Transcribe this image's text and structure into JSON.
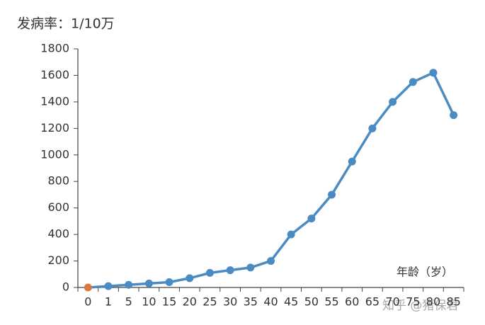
{
  "chart_data": {
    "type": "line",
    "y_label": "发病率：1/10万",
    "x_label": "年龄（岁）",
    "watermark": "知乎 @猪保君",
    "categories": [
      "0",
      "1",
      "5",
      "10",
      "15",
      "20",
      "25",
      "30",
      "35",
      "40",
      "45",
      "50",
      "55",
      "60",
      "65",
      "70",
      "75",
      "80",
      "85"
    ],
    "series": [
      {
        "color": "#4a8bc4",
        "values": [
          0,
          10,
          20,
          30,
          40,
          70,
          110,
          130,
          150,
          200,
          400,
          520,
          700,
          950,
          1200,
          1400,
          1550,
          1620,
          1300
        ]
      }
    ],
    "highlight": {
      "index": 0,
      "color": "#d9783a"
    },
    "ylim": [
      0,
      1800
    ],
    "yticks": [
      0,
      200,
      400,
      600,
      800,
      1000,
      1200,
      1400,
      1600,
      1800
    ],
    "grid": false
  }
}
